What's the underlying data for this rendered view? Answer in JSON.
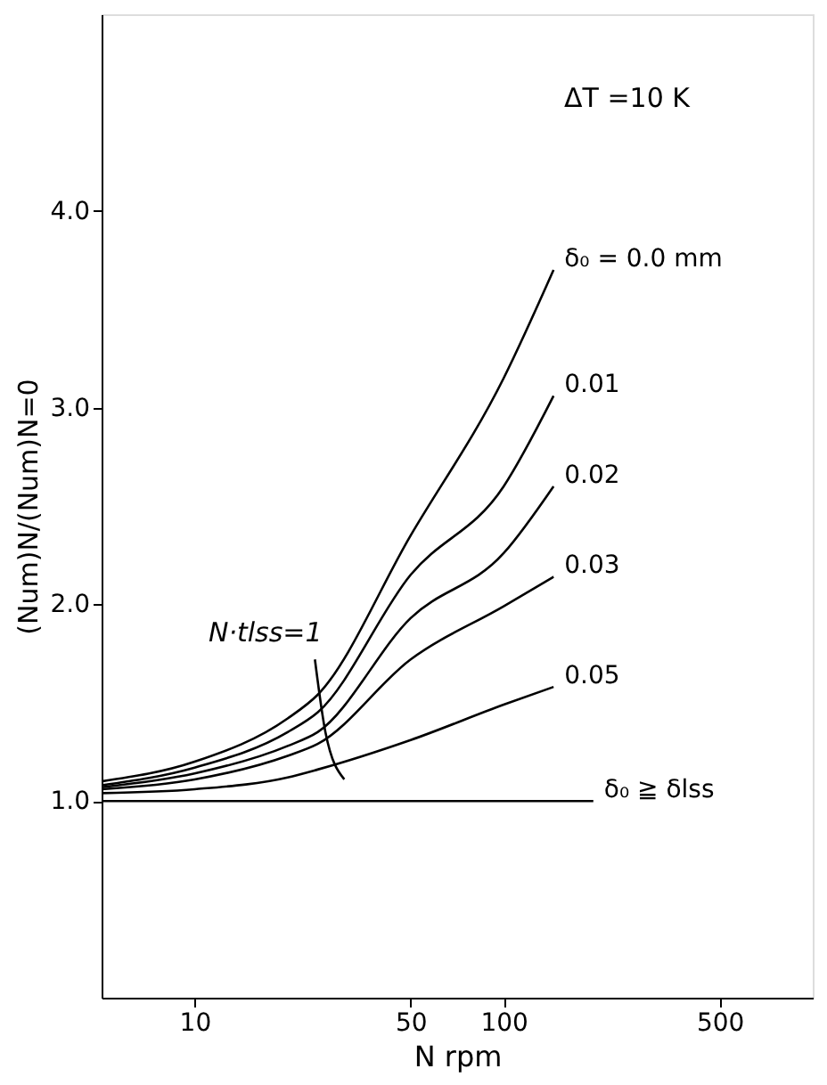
{
  "chart_data": {
    "type": "line",
    "xlabel": "N  rpm",
    "ylabel": "(Num)N/(Num)N=0",
    "log": "x",
    "xlim": [
      5,
      1000
    ],
    "xticks": [
      10,
      50,
      100,
      500
    ],
    "ylim": [
      0,
      5
    ],
    "yticks": [
      {
        "value": 1,
        "label": "1.0"
      },
      {
        "value": 2,
        "label": "2.0"
      },
      {
        "value": 3,
        "label": "3.0"
      },
      {
        "value": 4,
        "label": "4.0"
      }
    ],
    "grid": false,
    "legend": false,
    "marker": "none",
    "line_style": "solid",
    "annotations": [
      "ΔT =10 K",
      "N·tlss=1"
    ],
    "series": [
      {
        "name": "δ₀ = 0.0  mm",
        "color": "#000000",
        "x": [
          5,
          10,
          20,
          25,
          50,
          100,
          145
        ],
        "values": [
          1.1,
          1.2,
          1.42,
          1.54,
          2.35,
          3.15,
          3.7
        ]
      },
      {
        "name": "0.01",
        "color": "#000000",
        "x": [
          5,
          10,
          20,
          25,
          50,
          100,
          145
        ],
        "values": [
          1.08,
          1.17,
          1.35,
          1.45,
          2.15,
          2.6,
          3.06
        ]
      },
      {
        "name": "0.02",
        "color": "#000000",
        "x": [
          5,
          10,
          20,
          25,
          50,
          100,
          145
        ],
        "values": [
          1.07,
          1.14,
          1.28,
          1.35,
          1.93,
          2.26,
          2.6
        ]
      },
      {
        "name": "0.03",
        "color": "#000000",
        "x": [
          5,
          10,
          20,
          25,
          50,
          100,
          145
        ],
        "values": [
          1.06,
          1.11,
          1.23,
          1.29,
          1.72,
          1.99,
          2.14
        ]
      },
      {
        "name": "0.05",
        "color": "#000000",
        "x": [
          5,
          10,
          20,
          25,
          50,
          100,
          145
        ],
        "values": [
          1.04,
          1.06,
          1.12,
          1.16,
          1.31,
          1.49,
          1.58
        ]
      },
      {
        "name": "δ₀ ≧ δlss",
        "color": "#000000",
        "x": [
          5,
          195
        ],
        "values": [
          1.0,
          1.0
        ]
      },
      {
        "color": "#000000",
        "x": [
          24.5,
          26.5,
          30.5
        ],
        "values": [
          1.72,
          1.35,
          1.11
        ]
      }
    ]
  }
}
